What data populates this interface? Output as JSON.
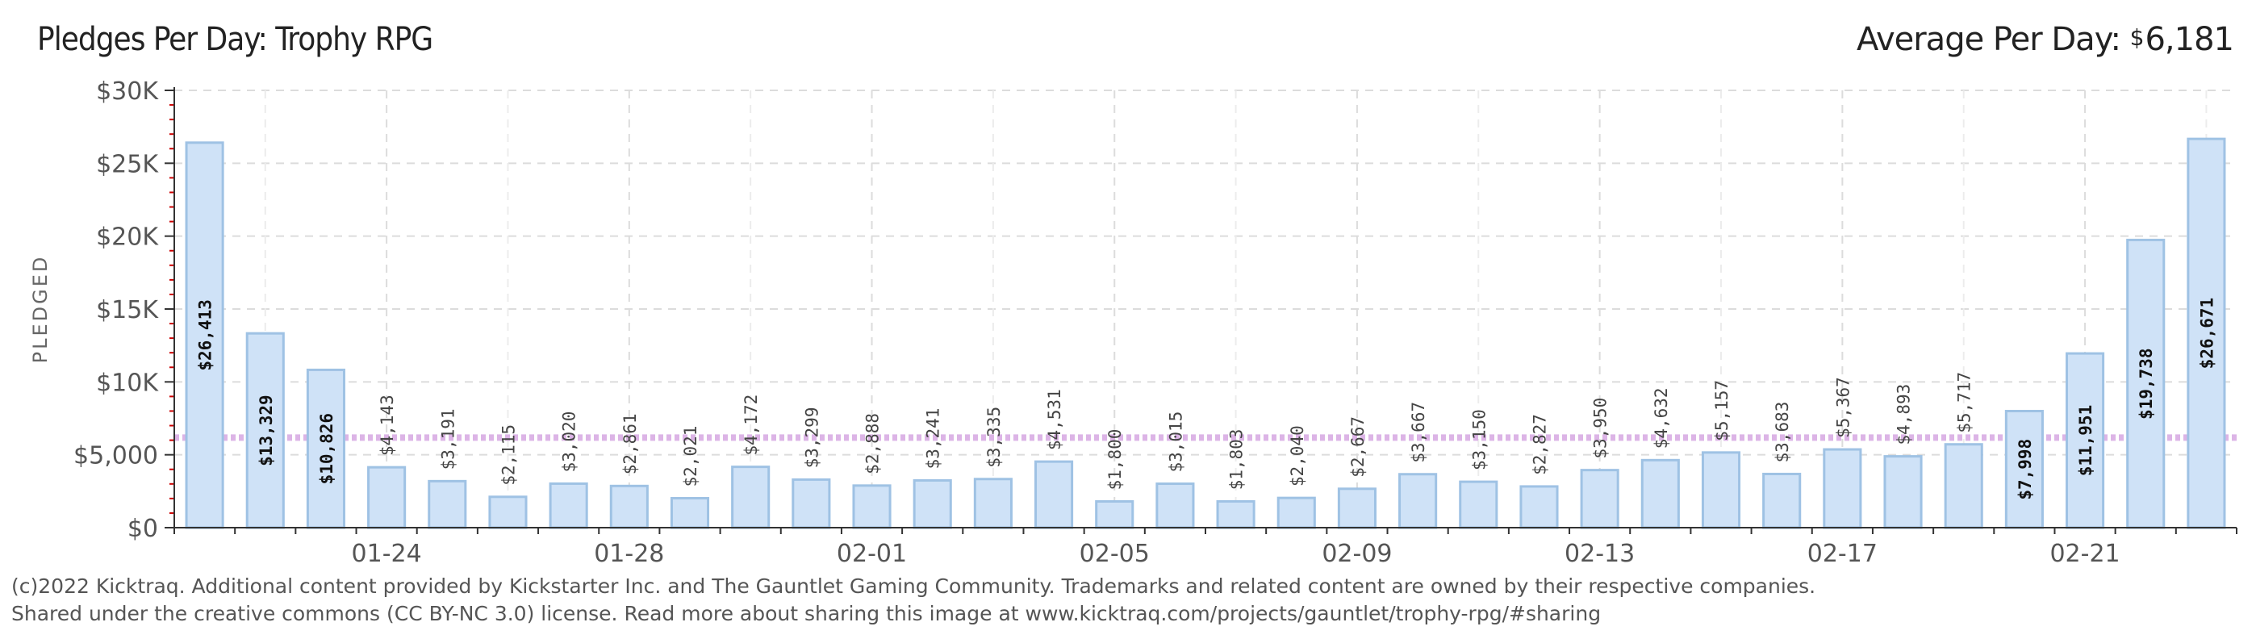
{
  "title": "Pledges Per Day: Trophy RPG",
  "average": {
    "label": "Average Per Day:",
    "currency": "$",
    "value_text": "6,181"
  },
  "footer": {
    "line1": "(c)2022 Kicktraq. Additional content provided by Kickstarter Inc. and The Gauntlet Gaming Community. Trademarks and related content are owned by their respective companies.",
    "line2": "Shared under the creative commons (CC BY-NC 3.0) license. Read more about sharing this image at www.kicktraq.com/projects/gauntlet/trophy-rpg/#sharing"
  },
  "colors": {
    "bar_fill": "#cfe2f7",
    "bar_stroke": "#9fc2e4",
    "average_line": "#dcb4e6",
    "grid": "#dcdcdc",
    "axis": "#333333",
    "tick_red": "#cc0000"
  },
  "chart_data": {
    "type": "bar",
    "title": "Pledges Per Day: Trophy RPG",
    "ylabel": "PLEDGED",
    "xlabel": "",
    "ylim": [
      0,
      30000
    ],
    "yticks": [
      {
        "value": 0,
        "label": "$0"
      },
      {
        "value": 5000,
        "label": "$5,000"
      },
      {
        "value": 10000,
        "label": "$10K"
      },
      {
        "value": 15000,
        "label": "$15K"
      },
      {
        "value": 20000,
        "label": "$20K"
      },
      {
        "value": 25000,
        "label": "$25K"
      },
      {
        "value": 30000,
        "label": "$30K"
      }
    ],
    "xtick_labels": [
      {
        "index": 3,
        "label": "01-24"
      },
      {
        "index": 7,
        "label": "01-28"
      },
      {
        "index": 11,
        "label": "02-01"
      },
      {
        "index": 15,
        "label": "02-05"
      },
      {
        "index": 19,
        "label": "02-09"
      },
      {
        "index": 23,
        "label": "02-13"
      },
      {
        "index": 27,
        "label": "02-17"
      },
      {
        "index": 31,
        "label": "02-21"
      }
    ],
    "average": 6181,
    "grid": true,
    "values": [
      26413,
      13329,
      10826,
      4143,
      3191,
      2115,
      3020,
      2861,
      2021,
      4172,
      3299,
      2888,
      3241,
      3335,
      4531,
      1800,
      3015,
      1803,
      2040,
      2667,
      3667,
      3150,
      2827,
      3950,
      4632,
      5157,
      3683,
      5367,
      4893,
      5717,
      7998,
      11951,
      19738,
      26671
    ],
    "labels": [
      "$26,413",
      "$13,329",
      "$10,826",
      "$4,143",
      "$3,191",
      "$2,115",
      "$3,020",
      "$2,861",
      "$2,021",
      "$4,172",
      "$3,299",
      "$2,888",
      "$3,241",
      "$3,335",
      "$4,531",
      "$1,800",
      "$3,015",
      "$1,803",
      "$2,040",
      "$2,667",
      "$3,667",
      "$3,150",
      "$2,827",
      "$3,950",
      "$4,632",
      "$5,157",
      "$3,683",
      "$5,367",
      "$4,893",
      "$5,717",
      "$7,998",
      "$11,951",
      "$19,738",
      "$26,671"
    ],
    "label_inside": [
      true,
      true,
      true,
      false,
      false,
      false,
      false,
      false,
      false,
      false,
      false,
      false,
      false,
      false,
      false,
      false,
      false,
      false,
      false,
      false,
      false,
      false,
      false,
      false,
      false,
      false,
      false,
      false,
      false,
      false,
      true,
      true,
      true,
      true
    ]
  }
}
